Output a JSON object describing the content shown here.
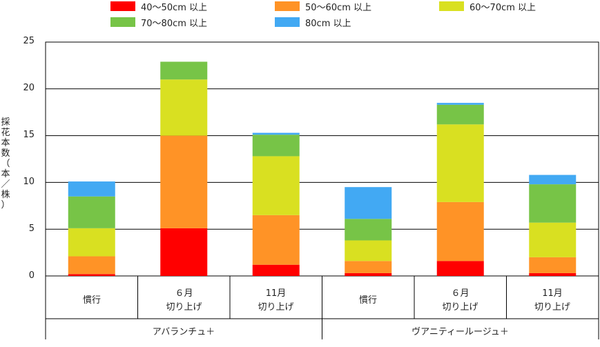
{
  "chart_data": {
    "type": "bar",
    "stacked": true,
    "ylabel": [
      "採",
      "花",
      "本",
      "数",
      "（",
      "本",
      "／",
      "株",
      "）"
    ],
    "ylim": [
      0,
      25
    ],
    "yticks": [
      "0",
      "5",
      "10",
      "15",
      "20",
      "25"
    ],
    "categories": [
      {
        "line1": "慣行",
        "line2": ""
      },
      {
        "line1": "６月",
        "line2": "切り上げ"
      },
      {
        "line1": "11月",
        "line2": "切り上げ"
      },
      {
        "line1": "慣行",
        "line2": ""
      },
      {
        "line1": "６月",
        "line2": "切り上げ"
      },
      {
        "line1": "11月",
        "line2": "切り上げ"
      }
    ],
    "groups": [
      "アバランチュ＋",
      "ヴアニティールージュ＋"
    ],
    "series": [
      {
        "name": "40〜50cm 以上",
        "color": "#ff0000",
        "values": [
          0.2,
          5.1,
          1.2,
          0.3,
          1.6,
          0.3
        ]
      },
      {
        "name": "50〜60cm 以上",
        "color": "#ff9326",
        "values": [
          1.9,
          9.9,
          5.3,
          1.3,
          6.3,
          1.7
        ]
      },
      {
        "name": "60〜70cm 以上",
        "color": "#d9e021",
        "values": [
          3.0,
          6.0,
          6.3,
          2.2,
          8.3,
          3.7
        ]
      },
      {
        "name": "70〜80cm 以上",
        "color": "#77c447",
        "values": [
          3.4,
          1.9,
          2.3,
          2.3,
          2.1,
          4.1
        ]
      },
      {
        "name": "80cm 以上",
        "color": "#42a9f3",
        "values": [
          1.6,
          0.0,
          0.2,
          3.4,
          0.2,
          1.0
        ]
      }
    ],
    "grid": true,
    "legend_position": "top"
  }
}
